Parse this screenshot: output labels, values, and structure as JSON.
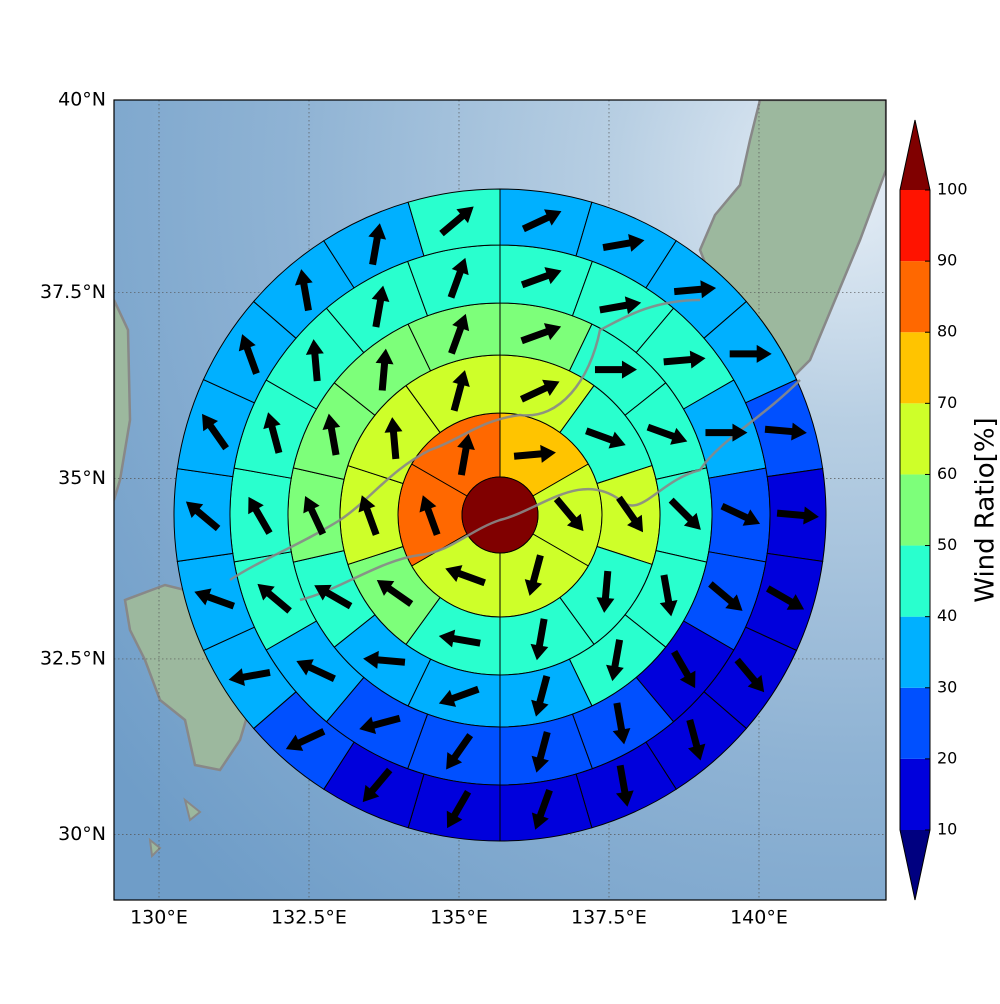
{
  "chart_data": {
    "type": "polar-sectors",
    "xlim": [
      129.25,
      142.117
    ],
    "ylim": [
      29.05,
      40
    ],
    "xticks": [
      {
        "value": 130,
        "label": "130°E"
      },
      {
        "value": 132.5,
        "label": "132.5°E"
      },
      {
        "value": 135,
        "label": "135°E"
      },
      {
        "value": 137.5,
        "label": "137.5°E"
      },
      {
        "value": 140,
        "label": "140°E"
      }
    ],
    "yticks": [
      {
        "value": 30,
        "label": "30°N"
      },
      {
        "value": 32.5,
        "label": "32.5°N"
      },
      {
        "value": 35,
        "label": "35°N"
      },
      {
        "value": 37.5,
        "label": "37.5°N"
      },
      {
        "value": 40,
        "label": "40°N"
      }
    ],
    "grid": true,
    "center_value": 105,
    "rings": [
      {
        "values": [
          75,
          65,
          65,
          62,
          85,
          82
        ],
        "directions": [
          5,
          -50,
          -105,
          160,
          110,
          80
        ]
      },
      {
        "values": [
          65,
          45,
          62,
          45,
          45,
          45,
          55,
          62,
          65,
          65
        ],
        "directions": [
          25,
          -20,
          -55,
          -95,
          -100,
          170,
          145,
          110,
          95,
          75
        ]
      },
      {
        "values": [
          55,
          45,
          45,
          45,
          45,
          42,
          35,
          35,
          35,
          45,
          55,
          55,
          55,
          55
        ],
        "directions": [
          20,
          0,
          -20,
          -45,
          -80,
          -100,
          -105,
          -160,
          175,
          150,
          115,
          100,
          85,
          70
        ]
      },
      {
        "values": [
          45,
          45,
          45,
          35,
          25,
          22,
          15,
          25,
          25,
          25,
          25,
          35,
          45,
          45,
          45,
          45,
          45,
          45
        ],
        "directions": [
          20,
          10,
          5,
          0,
          -25,
          -40,
          -60,
          -80,
          -105,
          -125,
          -165,
          155,
          140,
          120,
          105,
          95,
          80,
          70
        ]
      },
      {
        "values": [
          35,
          35,
          35,
          35,
          25,
          15,
          15,
          15,
          15,
          15,
          15,
          15,
          15,
          25,
          35,
          35,
          35,
          35,
          35,
          35,
          35,
          45
        ],
        "directions": [
          25,
          10,
          5,
          0,
          -5,
          -5,
          -30,
          -50,
          -75,
          -80,
          -110,
          -120,
          -130,
          -155,
          -170,
          160,
          140,
          125,
          110,
          100,
          80,
          40
        ]
      }
    ],
    "colorbar": {
      "label": "Wind Ratio[%]",
      "levels": [
        10,
        20,
        30,
        40,
        50,
        60,
        70,
        80,
        90,
        100
      ],
      "colors": [
        "#0000dc",
        "#0050ff",
        "#00b0ff",
        "#29ffce",
        "#7dff7a",
        "#ceff29",
        "#ffc400",
        "#ff6800",
        "#ff1300"
      ],
      "under_color": "#000080",
      "over_color": "#800000"
    }
  }
}
